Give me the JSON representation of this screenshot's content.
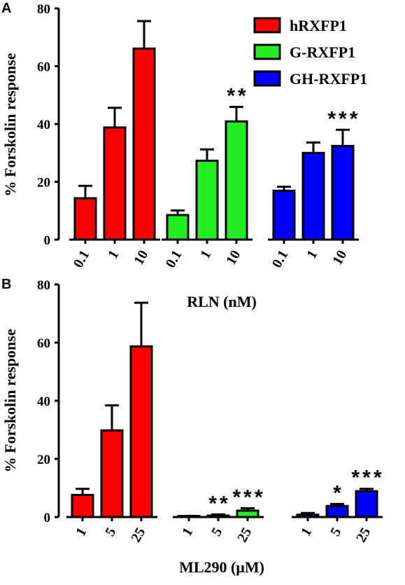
{
  "colors": {
    "hRXFP1": "#ff0000",
    "G-RXFP1": "#22ee22",
    "GH-RXFP1": "#0000ff"
  },
  "chart_data": [
    {
      "panel": "A",
      "type": "bar",
      "ylabel": "% Forskolin response",
      "xlabel": "RLN (nM)",
      "ylim": [
        0,
        80
      ],
      "yticks": [
        0,
        20,
        40,
        60,
        80
      ],
      "legend": {
        "placement": "top-right",
        "entries": [
          "hRXFP1",
          "G-RXFP1",
          "GH-RXFP1"
        ]
      },
      "groups": [
        {
          "series": "hRXFP1",
          "categories": [
            "0.1",
            "1",
            "10"
          ],
          "values": [
            14.3,
            38.8,
            66.1
          ],
          "errors": [
            4.3,
            6.8,
            9.5
          ],
          "significance": [
            "",
            "",
            ""
          ]
        },
        {
          "series": "G-RXFP1",
          "categories": [
            "0.1",
            "1",
            "10"
          ],
          "values": [
            8.5,
            27.3,
            40.9
          ],
          "errors": [
            1.6,
            3.9,
            5.0
          ],
          "significance": [
            "",
            "",
            "**"
          ]
        },
        {
          "series": "GH-RXFP1",
          "categories": [
            "0.1",
            "1",
            "10"
          ],
          "values": [
            16.9,
            30.0,
            32.4
          ],
          "errors": [
            1.4,
            3.6,
            5.6
          ],
          "significance": [
            "",
            "",
            "***"
          ]
        }
      ]
    },
    {
      "panel": "B",
      "type": "bar",
      "ylabel": "% Forskolin response",
      "xlabel": "ML290 (μM)",
      "ylim": [
        0,
        80
      ],
      "yticks": [
        0,
        20,
        40,
        60,
        80
      ],
      "groups": [
        {
          "series": "hRXFP1",
          "categories": [
            "1",
            "5",
            "25"
          ],
          "values": [
            7.6,
            29.8,
            58.7
          ],
          "errors": [
            2.1,
            8.6,
            15.0
          ],
          "significance": [
            "",
            "",
            ""
          ]
        },
        {
          "series": "G-RXFP1",
          "categories": [
            "1",
            "5",
            "25"
          ],
          "values": [
            0.2,
            0.5,
            2.2
          ],
          "errors": [
            0.2,
            0.4,
            0.8
          ],
          "significance": [
            "",
            "**",
            "***"
          ]
        },
        {
          "series": "GH-RXFP1",
          "categories": [
            "1",
            "5",
            "25"
          ],
          "values": [
            0.8,
            3.8,
            8.9
          ],
          "errors": [
            0.6,
            0.7,
            0.8
          ],
          "significance": [
            "",
            "*",
            "***"
          ]
        }
      ]
    }
  ]
}
